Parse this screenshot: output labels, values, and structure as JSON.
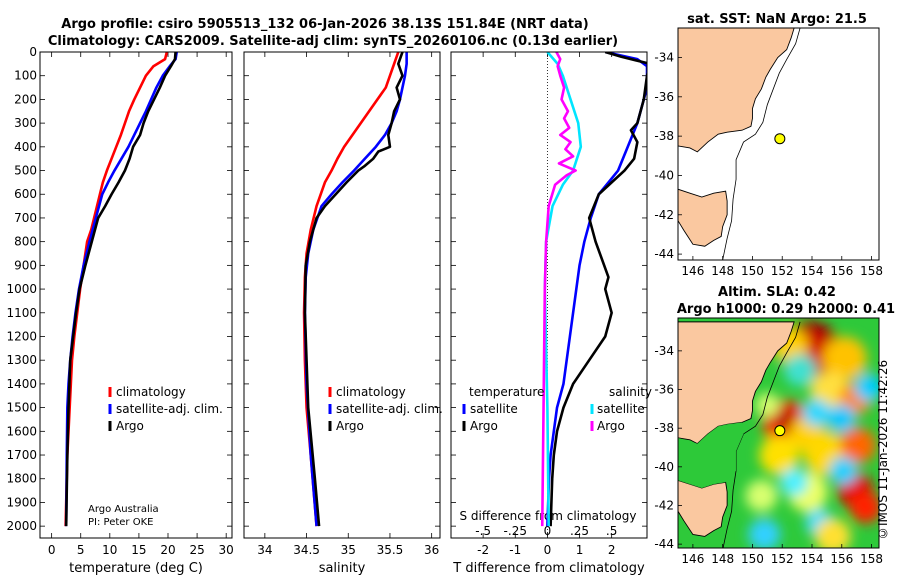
{
  "header": {
    "title_line1": "Argo profile: csiro 5905513_132 06-Jan-2026 38.13S 151.84E (NRT data)",
    "title_line2": "Climatology: CARS2009. Satellite-adj clim: synTS_20260106.nc (0.13d earlier)"
  },
  "credits": {
    "line1": "Argo Australia",
    "line2": "PI: Peter OKE"
  },
  "stamp": "©IMOS 11-Jan-2026 11:42:26",
  "colors": {
    "climatology": "#ff0000",
    "satellite": "#0000ff",
    "argo": "#000000",
    "sat_salinity": "#00e5ff",
    "argo_salinity": "#ff00ff",
    "land": "#fac8a0"
  },
  "chart_data": [
    {
      "id": "temperature",
      "type": "line",
      "xlabel": "temperature (deg C)",
      "xlim": [
        -2,
        31
      ],
      "ylim": [
        2050,
        0
      ],
      "xticks": [
        0,
        5,
        10,
        15,
        20,
        25,
        30
      ],
      "yticks": [
        0,
        100,
        200,
        300,
        400,
        500,
        600,
        700,
        800,
        900,
        1000,
        1100,
        1200,
        1300,
        1400,
        1500,
        1600,
        1700,
        1800,
        1900,
        2000
      ],
      "legend": [
        "climatology",
        "satellite-adj. clim.",
        "Argo"
      ],
      "series": [
        {
          "name": "climatology",
          "color": "#ff0000",
          "x": [
            19.8,
            19.5,
            17.5,
            16.2,
            15.2,
            14.2,
            13.3,
            12.6,
            11.9,
            11.1,
            10.3,
            9.5,
            8.8,
            8.3,
            7.8,
            7.3,
            6.8,
            6.1,
            5.5,
            4.9,
            4.4,
            3.9,
            3.5,
            3.3,
            3.1,
            2.9,
            2.7,
            2.6,
            2.5,
            2.4
          ],
          "y": [
            0,
            30,
            60,
            100,
            150,
            200,
            250,
            300,
            350,
            400,
            450,
            500,
            550,
            600,
            650,
            700,
            750,
            800,
            900,
            1000,
            1100,
            1200,
            1300,
            1400,
            1500,
            1600,
            1700,
            1800,
            1900,
            2000
          ]
        },
        {
          "name": "satellite-adj. clim.",
          "color": "#0000ff",
          "x": [
            21.5,
            21.3,
            20.3,
            19.1,
            18.0,
            17.1,
            16.2,
            15.2,
            14.2,
            13.2,
            12.0,
            10.8,
            9.7,
            8.7,
            7.6,
            6.5,
            5.5,
            4.7,
            4.1,
            3.6,
            3.2,
            2.9,
            2.7,
            2.6,
            2.5
          ],
          "y": [
            0,
            30,
            60,
            100,
            150,
            200,
            250,
            300,
            350,
            400,
            450,
            500,
            550,
            600,
            700,
            800,
            900,
            1000,
            1100,
            1200,
            1300,
            1400,
            1500,
            1700,
            2000
          ]
        },
        {
          "name": "Argo",
          "color": "#000000",
          "x": [
            21.3,
            21.2,
            20.5,
            19.5,
            18.6,
            17.6,
            16.6,
            15.8,
            15.2,
            14.0,
            13.4,
            12.6,
            11.5,
            10.3,
            9.2,
            8.0,
            6.9,
            5.8,
            4.8,
            4.2,
            3.7,
            3.2,
            2.9,
            2.7,
            2.5
          ],
          "y": [
            0,
            30,
            60,
            100,
            150,
            200,
            250,
            300,
            350,
            400,
            450,
            500,
            550,
            600,
            650,
            700,
            800,
            900,
            1000,
            1100,
            1200,
            1300,
            1500,
            1700,
            2000
          ]
        }
      ]
    },
    {
      "id": "salinity",
      "type": "line",
      "xlabel": "salinity",
      "xlim": [
        33.75,
        36.1
      ],
      "ylim": [
        2050,
        0
      ],
      "xticks": [
        34,
        34.5,
        35,
        35.5,
        36
      ],
      "legend": [
        "climatology",
        "satellite-adj. clim.",
        "Argo"
      ],
      "series": [
        {
          "name": "climatology",
          "color": "#ff0000",
          "x": [
            35.6,
            35.55,
            35.5,
            35.45,
            35.35,
            35.25,
            35.15,
            35.05,
            34.95,
            34.87,
            34.8,
            34.72,
            34.62,
            34.55,
            34.5,
            34.48,
            34.47,
            34.48,
            34.5,
            34.55,
            34.62
          ],
          "y": [
            0,
            50,
            100,
            150,
            200,
            250,
            300,
            350,
            400,
            450,
            500,
            550,
            650,
            750,
            850,
            950,
            1100,
            1300,
            1500,
            1700,
            2000
          ]
        },
        {
          "name": "satellite-adj. clim.",
          "color": "#0000ff",
          "x": [
            35.7,
            35.7,
            35.68,
            35.65,
            35.62,
            35.58,
            35.52,
            35.44,
            35.33,
            35.2,
            35.07,
            34.93,
            34.8,
            34.68,
            34.58,
            34.52,
            34.49,
            34.48,
            34.5,
            34.55,
            34.62
          ],
          "y": [
            0,
            50,
            100,
            150,
            200,
            250,
            300,
            350,
            400,
            450,
            500,
            550,
            600,
            650,
            750,
            850,
            950,
            1100,
            1400,
            1700,
            2000
          ]
        },
        {
          "name": "Argo",
          "color": "#000000",
          "x": [
            35.65,
            35.6,
            35.65,
            35.58,
            35.62,
            35.55,
            35.52,
            35.48,
            35.5,
            35.36,
            35.3,
            35.2,
            35.12,
            34.98,
            34.85,
            34.72,
            34.62,
            34.54,
            34.49,
            34.48,
            34.52,
            34.6,
            34.65
          ],
          "y": [
            0,
            50,
            100,
            150,
            200,
            250,
            300,
            350,
            400,
            420,
            450,
            480,
            500,
            550,
            600,
            650,
            700,
            800,
            900,
            1100,
            1500,
            1800,
            2000
          ]
        }
      ]
    },
    {
      "id": "difference",
      "type": "line",
      "xlabel": "T difference from climatology",
      "top_label": "S difference from climatology",
      "xlim": [
        -3,
        3.1
      ],
      "ylim": [
        2050,
        0
      ],
      "xticks": [
        -2,
        -1,
        0,
        1,
        2
      ],
      "sticks": [
        -0.5,
        -0.25,
        0,
        0.25,
        0.5
      ],
      "legend_left_title": "temperature",
      "legend_right_title": "salinity",
      "legend_left": [
        "satellite",
        "Argo"
      ],
      "legend_right": [
        "satellite",
        "Argo"
      ],
      "series": [
        {
          "name": "T satellite",
          "color": "#0000ff",
          "x": [
            1.8,
            2.8,
            3.1,
            3.1,
            3.1,
            3.0,
            2.8,
            2.5,
            2.2,
            1.9,
            1.6,
            1.35,
            1.15,
            1.0,
            0.9,
            0.7,
            0.5,
            0.3,
            0.2,
            0.1,
            0.05,
            0.0
          ],
          "y": [
            0,
            30,
            60,
            100,
            150,
            200,
            300,
            400,
            500,
            550,
            600,
            700,
            800,
            900,
            1000,
            1200,
            1400,
            1500,
            1600,
            1700,
            1800,
            2000
          ]
        },
        {
          "name": "T Argo",
          "color": "#000000",
          "x": [
            1.8,
            2.3,
            3.2,
            3.1,
            3.0,
            2.8,
            2.6,
            2.8,
            2.7,
            2.4,
            2.0,
            1.6,
            1.3,
            1.5,
            1.9,
            1.8,
            2.0,
            1.8,
            1.3,
            0.8,
            0.5,
            0.3,
            0.2,
            0.15,
            0.1
          ],
          "y": [
            0,
            20,
            50,
            100,
            200,
            300,
            330,
            380,
            450,
            500,
            550,
            600,
            700,
            800,
            950,
            1000,
            1100,
            1200,
            1300,
            1400,
            1500,
            1600,
            1700,
            1800,
            2000
          ]
        },
        {
          "name": "S satellite",
          "color": "#00e5ff",
          "x": [
            0,
            0.08,
            0.12,
            0.18,
            0.24,
            0.26,
            0.2,
            0.12,
            0.04,
            -0.01,
            -0.02,
            0,
            0.01
          ],
          "y": [
            0,
            50,
            100,
            200,
            300,
            400,
            500,
            560,
            650,
            800,
            1000,
            1500,
            2000
          ]
        },
        {
          "name": "S Argo",
          "color": "#ff00ff",
          "x": [
            0.07,
            0.1,
            0.08,
            0.1,
            0.13,
            0.11,
            0.16,
            0.13,
            0.17,
            0.1,
            0.18,
            0.14,
            0.2,
            0.09,
            0.22,
            0.15,
            0.06,
            0.01,
            -0.01,
            -0.02,
            -0.03,
            -0.04
          ],
          "y": [
            0,
            30,
            60,
            100,
            150,
            200,
            250,
            280,
            320,
            350,
            380,
            410,
            440,
            470,
            500,
            520,
            560,
            650,
            800,
            1000,
            1500,
            2000
          ]
        }
      ]
    }
  ],
  "maps": {
    "sst": {
      "title": "sat. SST: NaN Argo: 21.5",
      "xticks": [
        146,
        148,
        150,
        152,
        154,
        156,
        158
      ],
      "yticks": [
        -34,
        -36,
        -38,
        -40,
        -42,
        -44
      ],
      "lon_range": [
        145,
        158.5
      ],
      "lat_range": [
        -32.5,
        -44.3
      ],
      "point": {
        "lon": 151.84,
        "lat": -38.13
      }
    },
    "sla": {
      "title_line1": "Altim. SLA: 0.42",
      "title_line2": "Argo h1000: 0.29 h2000: 0.41",
      "xticks": [
        146,
        148,
        150,
        152,
        154,
        156,
        158
      ],
      "yticks": [
        -34,
        -36,
        -38,
        -40,
        -42,
        -44
      ],
      "lon_range": [
        145,
        158.5
      ],
      "lat_range": [
        -32.3,
        -44.2
      ],
      "point": {
        "lon": 151.84,
        "lat": -38.13
      }
    }
  }
}
